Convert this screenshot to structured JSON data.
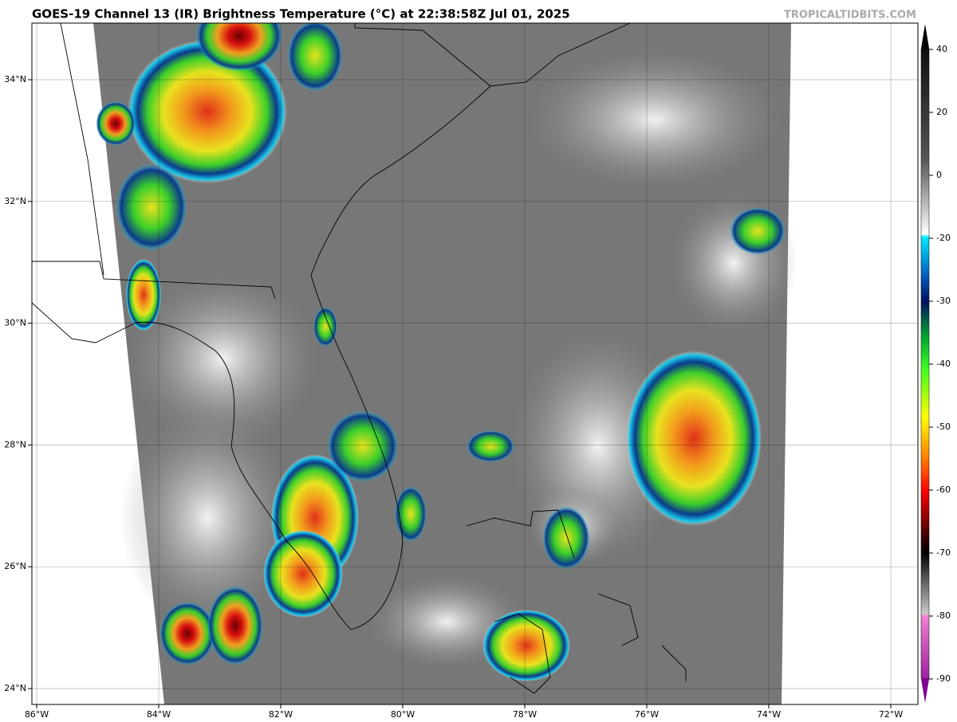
{
  "title": "GOES-19 Channel 13 (IR) Brightness Temperature (°C) at 22:38:58Z Jul 01, 2025",
  "watermark": "TROPICALTIDBITS.COM",
  "latitude_labels": [
    "34°N",
    "32°N",
    "30°N",
    "28°N",
    "26°N",
    "24°N"
  ],
  "longitude_labels": [
    "86°W",
    "84°W",
    "82°W",
    "80°W",
    "78°W",
    "76°W",
    "74°W",
    "72°W"
  ],
  "colorbar": {
    "ticks": [
      40,
      20,
      0,
      -20,
      -30,
      -40,
      -50,
      -60,
      -70,
      -80,
      -90
    ]
  }
}
